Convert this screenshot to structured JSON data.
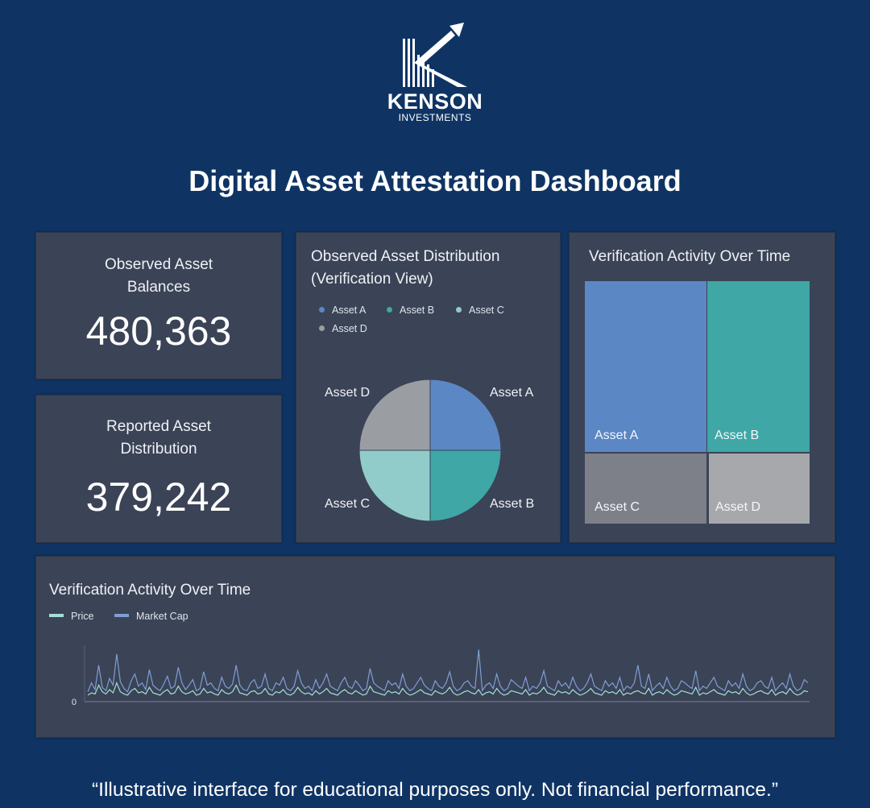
{
  "brand": {
    "name": "KENSON",
    "tagline": "INVESTMENTS"
  },
  "page_title": "Digital Asset Attestation Dashboard",
  "kpis": [
    {
      "label_line1": "Observed Asset",
      "label_line2": "Balances",
      "value": "480,363"
    },
    {
      "label_line1": "Reported Asset",
      "label_line2": "Distribution",
      "value": "379,242"
    }
  ],
  "pie_panel": {
    "title_line1": "Observed Asset Distribution",
    "title_line2": "(Verification View)"
  },
  "treemap_panel": {
    "title": "Verification Activity Over Time"
  },
  "line_panel": {
    "title": "Verification Activity Over Time"
  },
  "footer": "“Illustrative interface for educational purposes only. Not financial performance.”",
  "colors": {
    "background": "#0f3464",
    "panel": "#3b4356",
    "asset_a": "#5b87c4",
    "asset_b": "#3fa7a5",
    "asset_c": "#91cbca",
    "asset_d": "#9a9da2",
    "treemap_c": "#7d8088",
    "treemap_d": "#a6a8ac",
    "price": "#a3dfd6",
    "market_cap": "#7f9ed4"
  },
  "chart_data": [
    {
      "type": "pie",
      "categories": [
        "Asset A",
        "Asset B",
        "Asset C",
        "Asset D"
      ],
      "values": [
        25,
        25,
        25,
        25
      ],
      "legend": [
        "Asset A",
        "Asset B",
        "Asset C",
        "Asset D"
      ],
      "legend_placement": "top-left"
    },
    {
      "type": "treemap",
      "categories": [
        "Asset A",
        "Asset B",
        "Asset C",
        "Asset D"
      ],
      "values": [
        33.2,
        19.4,
        23.0,
        19.4
      ]
    },
    {
      "type": "line",
      "legend": [
        "Price",
        "Market Cap"
      ],
      "legend_placement": "top-left",
      "y_tick": "0",
      "series": [
        {
          "name": "Price",
          "values": [
            3,
            5,
            4,
            12,
            6,
            4,
            8,
            5,
            14,
            6,
            4,
            3,
            7,
            9,
            5,
            6,
            4,
            10,
            5,
            4,
            3,
            6,
            8,
            4,
            5,
            11,
            6,
            4,
            5,
            7,
            3,
            4,
            9,
            5,
            6,
            4,
            3,
            8,
            5,
            4,
            6,
            12,
            5,
            4,
            3,
            6,
            7,
            4,
            5,
            9,
            4,
            3,
            6,
            5,
            8,
            4,
            3,
            5,
            10,
            6,
            4,
            5,
            3,
            7,
            4,
            6,
            9,
            5,
            4,
            3,
            6,
            8,
            5,
            4,
            7,
            5,
            3,
            4,
            11,
            6,
            5,
            4,
            3,
            7,
            5,
            6,
            4,
            9,
            5,
            3,
            4,
            6,
            8,
            5,
            4,
            3,
            7,
            5,
            4,
            6,
            10,
            5,
            3,
            4,
            6,
            7,
            5,
            4,
            8,
            3,
            5,
            6,
            4,
            9,
            5,
            3,
            4,
            7,
            6,
            5,
            4,
            8,
            3,
            5,
            4,
            6,
            10,
            5,
            4,
            3,
            7,
            5,
            6,
            4,
            8,
            5,
            3,
            4,
            6,
            9,
            5,
            4,
            3,
            7,
            5,
            6,
            4,
            8,
            3,
            5,
            4,
            6,
            7,
            5,
            4,
            9,
            3,
            5,
            6,
            4,
            8,
            5,
            3,
            4,
            7,
            6,
            5,
            4,
            10,
            3,
            5,
            4,
            6,
            8,
            5,
            4,
            3,
            7,
            5,
            6,
            4,
            9,
            5,
            3,
            4,
            6,
            7,
            5,
            4,
            8,
            3,
            5,
            6,
            4,
            9,
            5,
            3,
            4,
            7,
            6
          ]
        },
        {
          "name": "Market Cap",
          "values": [
            6,
            14,
            8,
            30,
            10,
            7,
            18,
            12,
            40,
            15,
            9,
            6,
            16,
            22,
            11,
            14,
            8,
            26,
            12,
            9,
            7,
            13,
            20,
            9,
            11,
            28,
            14,
            8,
            12,
            17,
            7,
            9,
            24,
            12,
            14,
            9,
            7,
            19,
            11,
            9,
            13,
            30,
            12,
            8,
            7,
            14,
            17,
            9,
            11,
            22,
            9,
            7,
            14,
            12,
            19,
            9,
            7,
            11,
            25,
            14,
            9,
            11,
            7,
            17,
            9,
            14,
            22,
            11,
            9,
            7,
            14,
            19,
            11,
            9,
            16,
            12,
            7,
            9,
            27,
            14,
            11,
            9,
            7,
            16,
            12,
            14,
            9,
            22,
            11,
            7,
            9,
            14,
            19,
            12,
            9,
            7,
            16,
            11,
            9,
            14,
            24,
            11,
            7,
            9,
            14,
            16,
            11,
            9,
            44,
            7,
            12,
            14,
            9,
            22,
            11,
            7,
            9,
            17,
            14,
            11,
            9,
            19,
            7,
            11,
            9,
            14,
            25,
            11,
            9,
            7,
            16,
            11,
            14,
            9,
            19,
            11,
            7,
            9,
            14,
            22,
            11,
            9,
            7,
            16,
            11,
            14,
            9,
            19,
            7,
            11,
            9,
            14,
            30,
            11,
            9,
            22,
            7,
            11,
            14,
            9,
            19,
            11,
            7,
            9,
            16,
            14,
            11,
            9,
            25,
            7,
            11,
            9,
            14,
            19,
            11,
            9,
            7,
            16,
            11,
            14,
            9,
            22,
            11,
            7,
            9,
            14,
            16,
            11,
            9,
            19,
            7,
            11,
            14,
            9,
            22,
            11,
            7,
            9,
            17,
            14
          ]
        }
      ]
    }
  ]
}
